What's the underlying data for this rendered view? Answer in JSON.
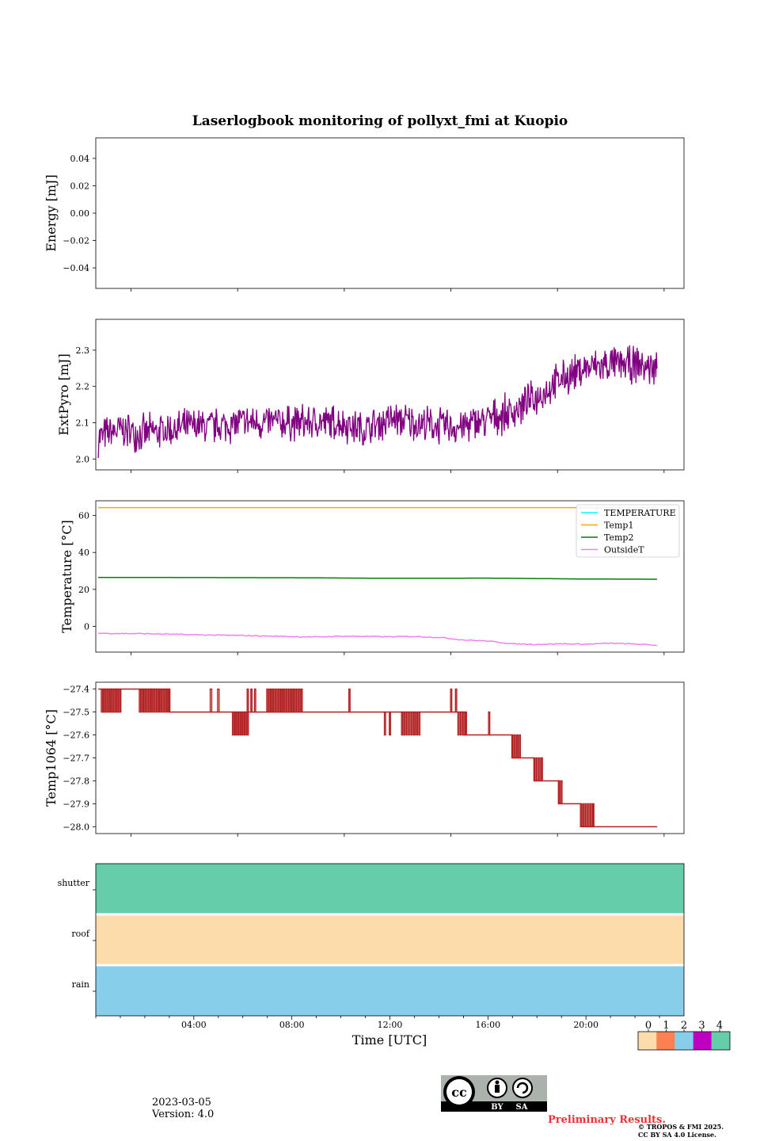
{
  "title": "Laserlogbook monitoring of pollyxt_fmi at Kuopio",
  "xlabel": "Time [UTC]",
  "xtick_labels": [
    "04:00",
    "08:00",
    "12:00",
    "16:00",
    "20:00"
  ],
  "footer": {
    "date": "2023-03-05",
    "version": "Version: 4.0",
    "preliminary": "Preliminary Results.",
    "copyright_line1": "© TROPOS & FMI 2025.",
    "copyright_line2": "CC BY SA 4.0 License.",
    "license_badge": {
      "cc": "cc",
      "by": "BY",
      "sa": "SA"
    }
  },
  "status_colorbar": {
    "ticks": [
      "0",
      "1",
      "2",
      "3",
      "4"
    ],
    "colors": [
      "#fddcac",
      "#fb8152",
      "#87ceeb",
      "#c000c0",
      "#66cdaa"
    ]
  },
  "chart_data": [
    {
      "type": "line",
      "ylabel": "Energy [mJ]",
      "ylim": [
        -0.055,
        0.055
      ],
      "yticks": [
        0.04,
        0.02,
        0.0,
        -0.02,
        -0.04
      ],
      "ytick_labels": [
        "0.04",
        "0.02",
        "0.00",
        "−0.02",
        "−0.04"
      ],
      "xlim_hours": [
        0,
        24
      ],
      "series": []
    },
    {
      "type": "line",
      "ylabel": "ExtPyro [mJ]",
      "ylim": [
        1.97,
        2.385
      ],
      "yticks": [
        2.0,
        2.1,
        2.2,
        2.3
      ],
      "ytick_labels": [
        "2.0",
        "2.1",
        "2.2",
        "2.3"
      ],
      "xlim_hours": [
        0,
        24
      ],
      "series": [
        {
          "name": "ExtPyro",
          "color": "#800080",
          "x_hours": [
            0.1,
            1.0,
            2.0,
            3.0,
            4.0,
            5.0,
            6.0,
            7.0,
            8.0,
            9.0,
            10.0,
            11.0,
            12.0,
            13.0,
            14.0,
            15.0,
            16.0,
            17.0,
            18.0,
            19.0,
            20.0,
            21.0,
            22.0,
            22.9
          ],
          "values": [
            2.06,
            2.08,
            2.07,
            2.08,
            2.09,
            2.09,
            2.1,
            2.1,
            2.1,
            2.1,
            2.1,
            2.08,
            2.11,
            2.1,
            2.09,
            2.09,
            2.11,
            2.13,
            2.17,
            2.22,
            2.25,
            2.26,
            2.26,
            2.25
          ],
          "noise_amplitude": 0.05
        }
      ]
    },
    {
      "type": "line",
      "ylabel": "Temperature [°C]",
      "ylim": [
        -14,
        68
      ],
      "yticks": [
        60,
        40,
        20,
        0
      ],
      "ytick_labels": [
        "60",
        "40",
        "20",
        "0"
      ],
      "xlim_hours": [
        0,
        24
      ],
      "legend_position": "upper right",
      "legend": [
        "TEMPERATURE",
        "Temp1",
        "Temp2",
        "OutsideT"
      ],
      "series": [
        {
          "name": "TEMPERATURE",
          "color": "#00ffff",
          "x_hours": [],
          "values": []
        },
        {
          "name": "Temp1",
          "color": "#ffa500",
          "x_hours": [
            0.1,
            22.9
          ],
          "values": [
            64.3,
            64.3
          ]
        },
        {
          "name": "Temp2",
          "color": "#008000",
          "x_hours": [
            0.1,
            4.0,
            8.0,
            12.0,
            16.0,
            20.0,
            22.9
          ],
          "values": [
            26.5,
            26.4,
            26.3,
            26.0,
            26.1,
            25.6,
            25.5
          ]
        },
        {
          "name": "OutsideT",
          "color": "#ee82ee",
          "x_hours": [
            0.1,
            2.0,
            4.0,
            6.0,
            8.0,
            9.0,
            10.0,
            11.0,
            12.0,
            13.0,
            14.0,
            15.0,
            16.0,
            17.0,
            18.0,
            19.0,
            20.0,
            21.0,
            22.0,
            22.9
          ],
          "values": [
            -3.8,
            -4.0,
            -4.6,
            -5.0,
            -5.6,
            -5.8,
            -5.4,
            -5.5,
            -5.7,
            -5.5,
            -6.0,
            -7.4,
            -8.0,
            -9.5,
            -9.8,
            -9.5,
            -9.7,
            -9.2,
            -9.6,
            -10.3
          ]
        }
      ]
    },
    {
      "type": "line",
      "ylabel": "Temp1064 [°C]",
      "ylim": [
        -28.03,
        -27.37
      ],
      "yticks": [
        -27.4,
        -27.5,
        -27.6,
        -27.7,
        -27.8,
        -27.9,
        -28.0
      ],
      "ytick_labels": [
        "−27.4",
        "−27.5",
        "−27.6",
        "−27.7",
        "−27.8",
        "−27.9",
        "−28.0"
      ],
      "xlim_hours": [
        0,
        24
      ],
      "series": [
        {
          "name": "Temp1064",
          "color": "#b22222",
          "levels": [
            {
              "start_hour": 0.1,
              "end_hour": 3.0,
              "value": -27.4
            },
            {
              "start_hour": 3.0,
              "end_hour": 11.0,
              "value": -27.5
            },
            {
              "start_hour": 15.0,
              "end_hour": 16.0,
              "value": -27.6
            },
            {
              "start_hour": 16.0,
              "end_hour": 17.0,
              "value": -27.6
            },
            {
              "start_hour": 17.0,
              "end_hour": 17.9,
              "value": -27.7
            },
            {
              "start_hour": 17.9,
              "end_hour": 18.9,
              "value": -27.8
            },
            {
              "start_hour": 18.9,
              "end_hour": 19.8,
              "value": -27.9
            },
            {
              "start_hour": 19.8,
              "end_hour": 22.9,
              "value": -28.0
            }
          ],
          "steps": [
            {
              "hour": 0.1,
              "value": -27.4
            },
            {
              "hour": 3.0,
              "value": -27.5
            },
            {
              "hour": 11.9,
              "value": -27.5
            },
            {
              "hour": 15.1,
              "value": -27.6
            },
            {
              "hour": 17.0,
              "value": -27.7
            },
            {
              "hour": 17.9,
              "value": -27.8
            },
            {
              "hour": 18.9,
              "value": -27.9
            },
            {
              "hour": 20.3,
              "value": -28.0
            },
            {
              "hour": 22.9,
              "value": -28.0
            }
          ],
          "flicker_bursts": [
            {
              "start_hour": 0.25,
              "end_hour": 1.0,
              "low": -27.5,
              "high": -27.4,
              "count": 14
            },
            {
              "start_hour": 1.8,
              "end_hour": 3.0,
              "low": -27.5,
              "high": -27.4,
              "count": 14
            },
            {
              "start_hour": 4.7,
              "end_hour": 5.0,
              "low": -27.5,
              "high": -27.4,
              "count": 2
            },
            {
              "start_hour": 5.6,
              "end_hour": 6.2,
              "low": -27.6,
              "high": -27.5,
              "count": 8
            },
            {
              "start_hour": 6.2,
              "end_hour": 6.5,
              "low": -27.5,
              "high": -27.4,
              "count": 3
            },
            {
              "start_hour": 7.0,
              "end_hour": 8.4,
              "low": -27.5,
              "high": -27.4,
              "count": 16
            },
            {
              "start_hour": 10.3,
              "end_hour": 10.4,
              "low": -27.5,
              "high": -27.4,
              "count": 1
            },
            {
              "start_hour": 11.8,
              "end_hour": 12.0,
              "low": -27.6,
              "high": -27.5,
              "count": 2
            },
            {
              "start_hour": 12.5,
              "end_hour": 13.2,
              "low": -27.6,
              "high": -27.5,
              "count": 8
            },
            {
              "start_hour": 14.5,
              "end_hour": 14.7,
              "low": -27.5,
              "high": -27.4,
              "count": 2
            },
            {
              "start_hour": 14.8,
              "end_hour": 15.1,
              "low": -27.6,
              "high": -27.5,
              "count": 4
            },
            {
              "start_hour": 16.0,
              "end_hour": 16.1,
              "low": -27.6,
              "high": -27.5,
              "count": 1
            },
            {
              "start_hour": 17.0,
              "end_hour": 17.3,
              "low": -27.7,
              "high": -27.6,
              "count": 4
            },
            {
              "start_hour": 17.9,
              "end_hour": 18.2,
              "low": -27.8,
              "high": -27.7,
              "count": 4
            },
            {
              "start_hour": 18.9,
              "end_hour": 19.0,
              "low": -27.9,
              "high": -27.8,
              "count": 2
            },
            {
              "start_hour": 19.8,
              "end_hour": 20.3,
              "low": -28.0,
              "high": -27.9,
              "count": 6
            }
          ]
        }
      ]
    },
    {
      "type": "heatmap",
      "ylabel": "",
      "rows": [
        "shutter",
        "roof",
        "rain"
      ],
      "row_status": [
        4,
        0,
        2
      ],
      "xlim_hours": [
        0,
        24
      ]
    }
  ]
}
